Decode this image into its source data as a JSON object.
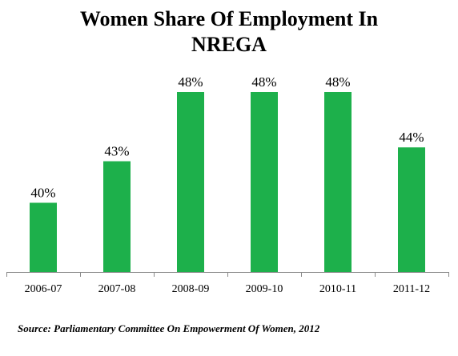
{
  "chart_data": {
    "type": "bar",
    "title_lines": [
      "Women Share Of Employment In",
      "NREGA"
    ],
    "categories": [
      "2006-07",
      "2007-08",
      "2008-09",
      "2009-10",
      "2010-11",
      "2011-12"
    ],
    "values": [
      40,
      43,
      48,
      48,
      48,
      44
    ],
    "value_labels": [
      "40%",
      "43%",
      "48%",
      "48%",
      "48%",
      "44%"
    ],
    "xlabel": "",
    "ylabel": "",
    "ylim": [
      35,
      48
    ],
    "grid": false,
    "legend": "none",
    "bar_color": "#1db04b",
    "source": "Source: Parliamentary Committee On Empowerment Of Women, 2012"
  }
}
